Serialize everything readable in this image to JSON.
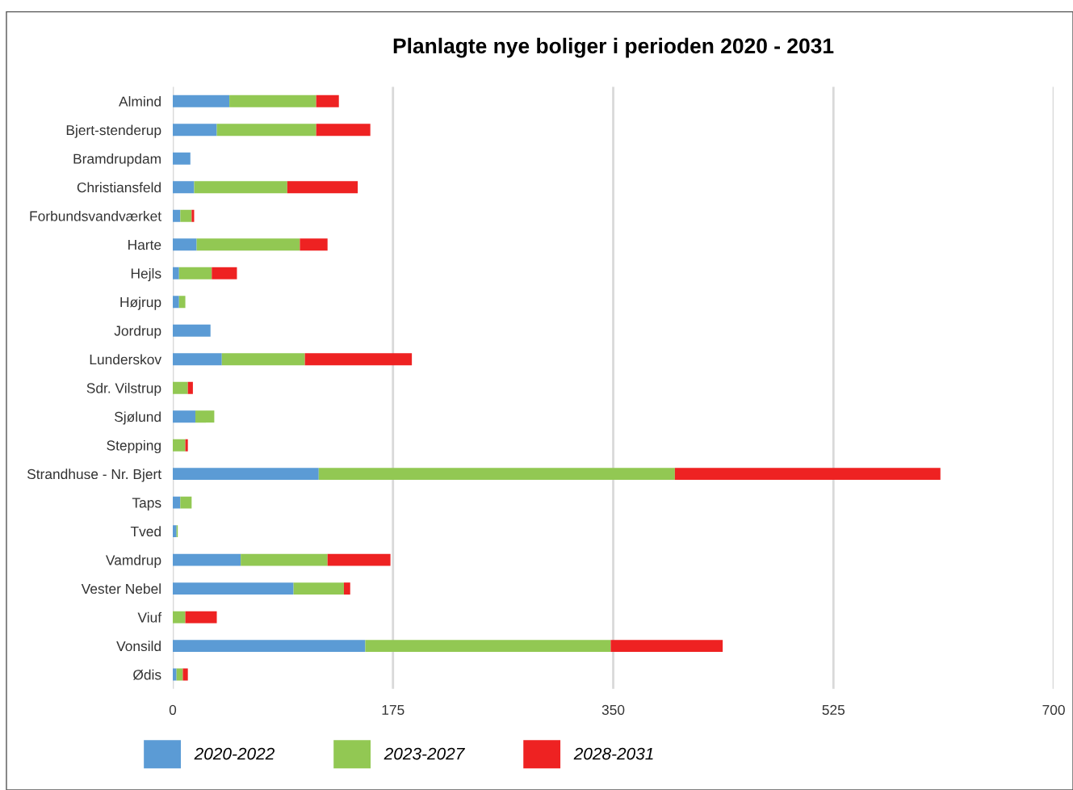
{
  "chart_data": {
    "type": "bar",
    "orientation": "horizontal",
    "stacked": true,
    "title": "Planlagte nye boliger i perioden 2020 - 2031",
    "categories": [
      "Almind",
      "Bjert-stenderup",
      "Bramdrupdam",
      "Christiansfeld",
      "Forbundsvandværket",
      "Harte",
      "Hejls",
      "Højrup",
      "Jordrup",
      "Lunderskov",
      "Sdr. Vilstrup",
      "Sjølund",
      "Stepping",
      "Strandhuse - Nr. Bjert",
      "Taps",
      "Tved",
      "Vamdrup",
      "Vester Nebel",
      "Viuf",
      "Vonsild",
      "Ødis"
    ],
    "series": [
      {
        "name": "2020-2022",
        "color": "#5b9bd5",
        "values": [
          45,
          35,
          14,
          17,
          6,
          19,
          5,
          5,
          30,
          39,
          0,
          18,
          0,
          116,
          6,
          3,
          54,
          96,
          0,
          153,
          3
        ]
      },
      {
        "name": "2023-2027",
        "color": "#92c853",
        "values": [
          69,
          79,
          0,
          74,
          9,
          82,
          26,
          5,
          0,
          66,
          12,
          15,
          10,
          283,
          9,
          1,
          69,
          40,
          10,
          195,
          5
        ]
      },
      {
        "name": "2028-2031",
        "color": "#ee2222",
        "values": [
          18,
          43,
          0,
          56,
          2,
          22,
          20,
          0,
          0,
          85,
          4,
          0,
          2,
          211,
          0,
          0,
          50,
          5,
          25,
          89,
          4
        ]
      }
    ],
    "xlim": [
      0,
      700
    ],
    "xticks": [
      0,
      175,
      350,
      525,
      700
    ],
    "grid": "x",
    "legend": "bottom"
  }
}
